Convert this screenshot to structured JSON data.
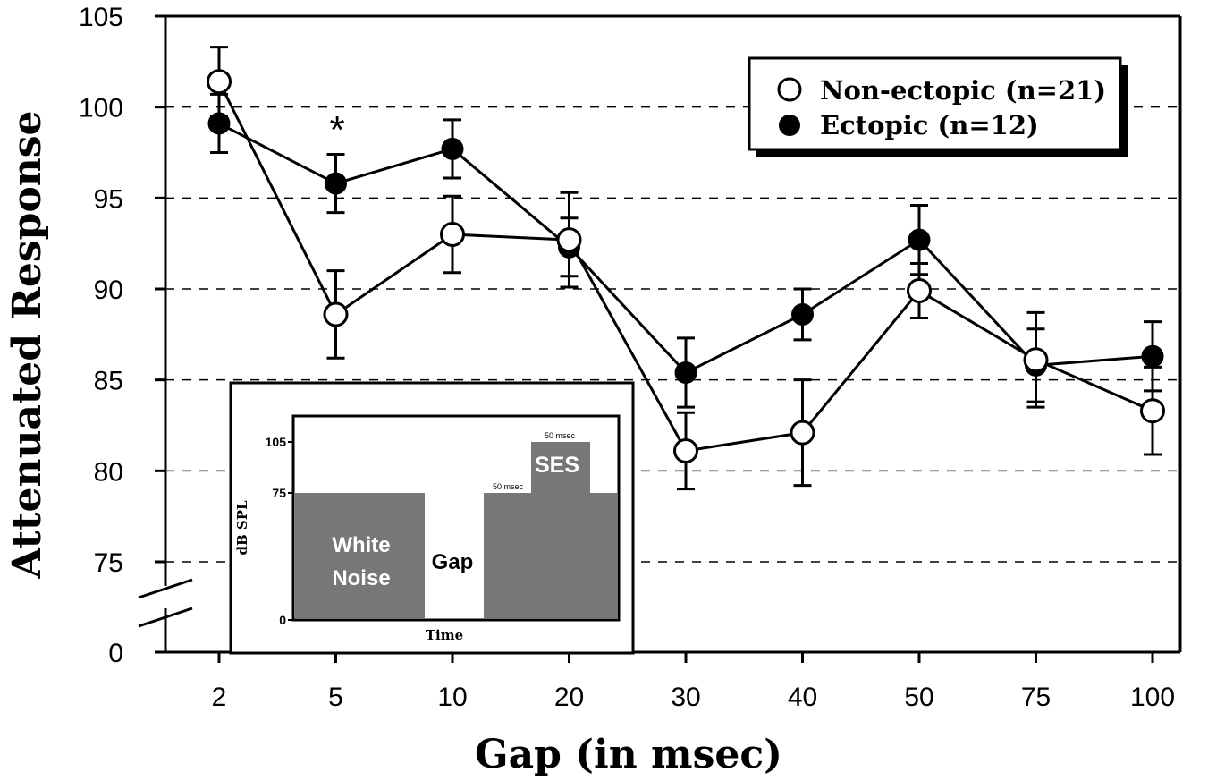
{
  "chart_data": {
    "type": "line",
    "title": "",
    "xlabel": "Gap (in msec)",
    "ylabel": "Attenuated Response",
    "categories": [
      "2",
      "5",
      "10",
      "20",
      "30",
      "40",
      "50",
      "75",
      "100"
    ],
    "y_ticks": [
      "0",
      "75",
      "80",
      "85",
      "90",
      "95",
      "100",
      "105"
    ],
    "ylim": [
      75,
      105
    ],
    "y_axis_break": "between 0 and 75",
    "grid": "horizontal dashed",
    "legend_position": "top-right",
    "series": [
      {
        "name": "Non-ectopic (n=21)",
        "marker": "open-circle",
        "values": [
          101.4,
          88.6,
          93.0,
          92.7,
          81.1,
          82.1,
          89.9,
          86.1,
          83.3
        ],
        "errors": [
          1.9,
          2.4,
          2.1,
          2.6,
          2.1,
          2.9,
          1.5,
          2.6,
          2.4
        ]
      },
      {
        "name": "Ectopic (n=12)",
        "marker": "filled-circle",
        "values": [
          99.1,
          95.8,
          97.7,
          92.3,
          85.4,
          88.6,
          92.7,
          85.8,
          86.3
        ],
        "errors": [
          1.6,
          1.6,
          1.6,
          1.6,
          1.9,
          1.4,
          1.9,
          2.0,
          1.9
        ]
      }
    ],
    "annotations": [
      {
        "text": "*",
        "category": "5"
      }
    ],
    "inset": {
      "ylabel": "dB SPL",
      "xlabel": "Time",
      "y_ticks": [
        "0",
        "75",
        "105"
      ],
      "labels": {
        "noise": [
          "White",
          "Noise"
        ],
        "gap": "Gap",
        "ses": "SES",
        "dur1": "50 msec",
        "dur2": "50 msec"
      },
      "fill_color": "#777777"
    }
  }
}
